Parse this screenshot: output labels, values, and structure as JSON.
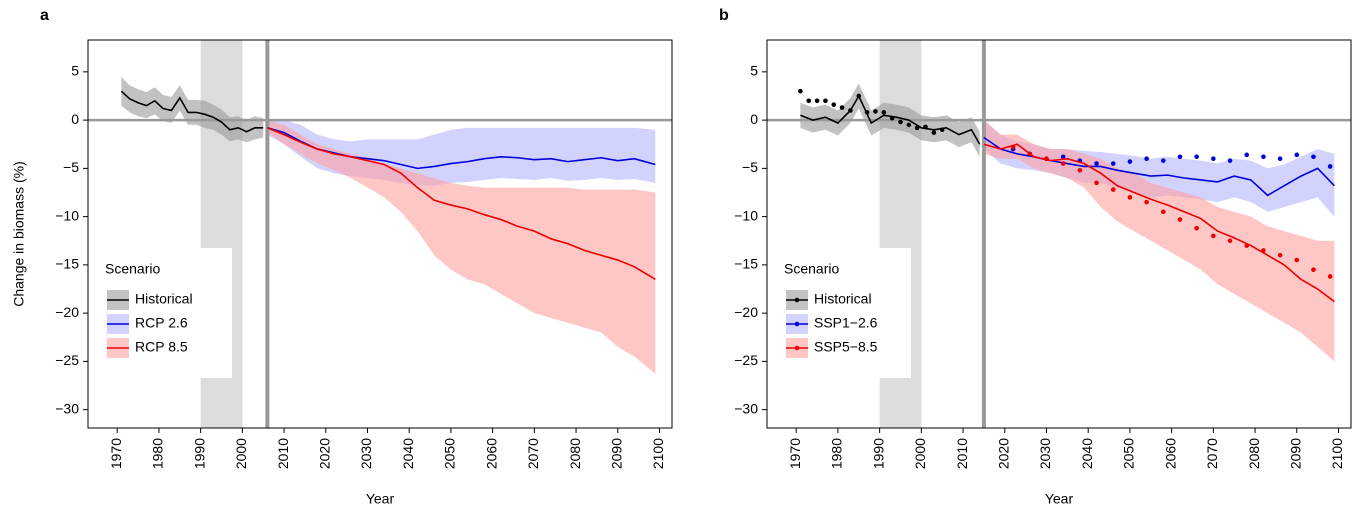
{
  "chart_data": [
    {
      "type": "line",
      "panel": "a",
      "xlabel": "Year",
      "ylabel": "Change in biomass (%)",
      "xlim": [
        1963,
        2103
      ],
      "ylim": [
        -31.9,
        8.3
      ],
      "xticks": [
        1970,
        1980,
        1990,
        2000,
        2010,
        2020,
        2030,
        2040,
        2050,
        2060,
        2070,
        2080,
        2090,
        2100
      ],
      "yticks": [
        5,
        0,
        {
          "value": -5,
          "label": "−5"
        },
        {
          "value": -10,
          "label": "−10"
        },
        {
          "value": -15,
          "label": "−15"
        },
        {
          "value": -20,
          "label": "−20"
        },
        {
          "value": -25,
          "label": "−25"
        },
        {
          "value": -30,
          "label": "−30"
        }
      ],
      "shaded_span": [
        1990,
        2000
      ],
      "span_color": "#dcdcdc",
      "vline": 2006,
      "hline": 0,
      "ref_color": "#999999",
      "legend_title": "Scenario",
      "legend": "lower left",
      "series": [
        {
          "name": "Historical",
          "color": "#000000",
          "band_color": "#9a9a9a",
          "x": [
            1971,
            1973,
            1975,
            1977,
            1979,
            1981,
            1983,
            1985,
            1987,
            1989,
            1991,
            1993,
            1995,
            1997,
            1999,
            2001,
            2003,
            2005
          ],
          "values": [
            3,
            2.2,
            1.8,
            1.5,
            2,
            1.2,
            1,
            2.3,
            0.8,
            0.8,
            0.6,
            0.3,
            -0.2,
            -1,
            -0.8,
            -1.2,
            -0.8,
            -0.8
          ],
          "lower": [
            1.5,
            0.8,
            0.4,
            0.2,
            0.6,
            -0.1,
            -0.3,
            1,
            -0.5,
            -0.5,
            -0.8,
            -1,
            -1.5,
            -2.2,
            -2,
            -2.3,
            -2,
            -1.8
          ],
          "upper": [
            4.5,
            3.6,
            3.2,
            2.9,
            3.4,
            2.6,
            2.4,
            3.6,
            2.1,
            2.1,
            2,
            1.6,
            1.1,
            0.3,
            0.4,
            0,
            0.4,
            0.2
          ]
        },
        {
          "name": "RCP 2.6",
          "color": "#0000dd",
          "band_color": "#b4b4ff",
          "x": [
            2006,
            2010,
            2014,
            2018,
            2022,
            2026,
            2030,
            2034,
            2038,
            2042,
            2046,
            2050,
            2054,
            2058,
            2062,
            2066,
            2070,
            2074,
            2078,
            2082,
            2086,
            2090,
            2094,
            2099
          ],
          "values": [
            -0.8,
            -1.3,
            -2.2,
            -3,
            -3.4,
            -3.8,
            -4,
            -4.2,
            -4.6,
            -5,
            -4.8,
            -4.5,
            -4.3,
            -4,
            -3.8,
            -3.9,
            -4.1,
            -4,
            -4.3,
            -4.1,
            -3.9,
            -4.2,
            -4,
            -4.6
          ],
          "lower": [
            -1.5,
            -2.5,
            -3.8,
            -5,
            -5.5,
            -5.8,
            -6,
            -6.2,
            -6.5,
            -6.8,
            -6.8,
            -6.5,
            -6.4,
            -6.2,
            -6,
            -6.1,
            -6.2,
            -6,
            -6.3,
            -6.2,
            -6,
            -6.2,
            -6.1,
            -6.5
          ],
          "upper": [
            0,
            0,
            -0.5,
            -1.5,
            -2,
            -2.2,
            -2,
            -2,
            -2,
            -2,
            -1.5,
            -1,
            -0.8,
            -0.8,
            -0.8,
            -0.8,
            -0.8,
            -0.8,
            -0.8,
            -0.8,
            -0.8,
            -0.8,
            -0.8,
            -1
          ]
        },
        {
          "name": "RCP 8.5",
          "color": "#ee0000",
          "band_color": "#ffa0a0",
          "x": [
            2006,
            2010,
            2014,
            2018,
            2022,
            2026,
            2030,
            2034,
            2038,
            2042,
            2046,
            2050,
            2054,
            2058,
            2062,
            2066,
            2070,
            2074,
            2078,
            2082,
            2086,
            2090,
            2094,
            2099
          ],
          "values": [
            -0.8,
            -1.5,
            -2.3,
            -3,
            -3.5,
            -3.8,
            -4.2,
            -4.6,
            -5.5,
            -7,
            -8.3,
            -8.8,
            -9.2,
            -9.8,
            -10.3,
            -11,
            -11.5,
            -12.3,
            -12.8,
            -13.5,
            -14,
            -14.5,
            -15.2,
            -16.5
          ],
          "lower": [
            -1.2,
            -2.5,
            -3.5,
            -4.5,
            -5.2,
            -6,
            -7,
            -8,
            -9.5,
            -11.5,
            -14,
            -15.5,
            -16.5,
            -17,
            -18,
            -19,
            -20,
            -20.5,
            -21,
            -21.5,
            -22,
            -23.5,
            -24.5,
            -26.3
          ],
          "upper": [
            0,
            -0.5,
            -1.5,
            -2.5,
            -3,
            -3.5,
            -4,
            -4.5,
            -5,
            -5.5,
            -6,
            -6.5,
            -6.8,
            -7,
            -7,
            -7,
            -7,
            -7,
            -7,
            -7.2,
            -7.2,
            -7.2,
            -7.2,
            -7.5
          ]
        }
      ]
    },
    {
      "type": "line",
      "panel": "b",
      "xlabel": "Year",
      "xlim": [
        1963,
        2103
      ],
      "ylim": [
        -31.9,
        8.3
      ],
      "xticks": [
        1970,
        1980,
        1990,
        2000,
        2010,
        2020,
        2030,
        2040,
        2050,
        2060,
        2070,
        2080,
        2090,
        2100
      ],
      "yticks": [
        5,
        0,
        {
          "value": -5,
          "label": "−5"
        },
        {
          "value": -10,
          "label": "−10"
        },
        {
          "value": -15,
          "label": "−15"
        },
        {
          "value": -20,
          "label": "−20"
        },
        {
          "value": -25,
          "label": "−25"
        },
        {
          "value": -30,
          "label": "−30"
        }
      ],
      "shaded_span": [
        1990,
        2000
      ],
      "span_color": "#dcdcdc",
      "vline": 2015,
      "hline": 0,
      "ref_color": "#999999",
      "legend_title": "Scenario",
      "legend": "lower left",
      "series": [
        {
          "name": "Historical",
          "color": "#000000",
          "band_color": "#9a9a9a",
          "x": [
            1971,
            1974,
            1977,
            1980,
            1983,
            1985,
            1988,
            1991,
            1994,
            1997,
            2000,
            2003,
            2006,
            2009,
            2012,
            2014
          ],
          "values": [
            0.5,
            0,
            0.3,
            -0.3,
            1,
            2.5,
            -0.3,
            0.5,
            0.3,
            0,
            -0.8,
            -1,
            -0.8,
            -1.5,
            -1,
            -2.5
          ],
          "lower": [
            -0.8,
            -1.3,
            -1,
            -1.6,
            -0.3,
            1.2,
            -1.6,
            -0.8,
            -1,
            -1.3,
            -2.1,
            -2.3,
            -2.1,
            -2.8,
            -2.3,
            -3.8
          ],
          "upper": [
            1.8,
            1.3,
            1.6,
            1,
            2.3,
            3.8,
            1,
            1.8,
            1.6,
            1.3,
            0.5,
            0.3,
            0.5,
            -0.2,
            0.3,
            -1.2
          ],
          "points_x": [
            1971,
            1973,
            1975,
            1977,
            1979,
            1981,
            1983,
            1985,
            1987,
            1989,
            1991,
            1993,
            1995,
            1997,
            1999,
            2001,
            2003,
            2005
          ],
          "points": [
            3,
            2,
            2,
            2,
            1.6,
            1.3,
            1,
            2.5,
            0.8,
            0.9,
            0.8,
            0.2,
            -0.2,
            -0.5,
            -0.8,
            -0.7,
            -1.3,
            -1
          ]
        },
        {
          "name": "SSP1−2.6",
          "color": "#0000dd",
          "band_color": "#b4b4ff",
          "x": [
            2015,
            2019,
            2023,
            2027,
            2031,
            2035,
            2039,
            2043,
            2047,
            2051,
            2055,
            2059,
            2063,
            2067,
            2071,
            2075,
            2079,
            2083,
            2087,
            2091,
            2095,
            2099
          ],
          "values": [
            -1.8,
            -3,
            -3.5,
            -3.8,
            -4.2,
            -4.5,
            -4.8,
            -4.8,
            -5.2,
            -5.5,
            -5.8,
            -5.7,
            -6,
            -6.2,
            -6.4,
            -5.8,
            -6.2,
            -7.8,
            -6.8,
            -5.8,
            -5,
            -6.8
          ],
          "lower": [
            -3,
            -4.5,
            -5,
            -5.2,
            -5.5,
            -6,
            -6.5,
            -6.5,
            -7,
            -7.5,
            -8,
            -7.8,
            -8,
            -8.2,
            -8.5,
            -8,
            -8.5,
            -9.5,
            -9,
            -8.5,
            -8,
            -10
          ],
          "upper": [
            0,
            -1.5,
            -2.2,
            -2.5,
            -3,
            -3,
            -3.2,
            -3.3,
            -3.5,
            -3.7,
            -4,
            -3.8,
            -4,
            -4.2,
            -4.5,
            -4,
            -4.2,
            -5,
            -4.6,
            -3.8,
            -3,
            -3.5
          ],
          "points_x": [
            2022,
            2026,
            2030,
            2034,
            2038,
            2042,
            2046,
            2050,
            2054,
            2058,
            2062,
            2066,
            2070,
            2074,
            2078,
            2082,
            2086,
            2090,
            2094,
            2098
          ],
          "points": [
            -3,
            -3.5,
            -4,
            -3.8,
            -4.2,
            -4.5,
            -4.5,
            -4.3,
            -4,
            -4.2,
            -3.8,
            -3.8,
            -4,
            -4.2,
            -3.6,
            -3.8,
            -4,
            -3.6,
            -3.8,
            -4.8
          ]
        },
        {
          "name": "SSP5−8.5",
          "color": "#ee0000",
          "band_color": "#ffa0a0",
          "x": [
            2015,
            2019,
            2023,
            2027,
            2031,
            2035,
            2039,
            2043,
            2047,
            2051,
            2055,
            2059,
            2063,
            2067,
            2071,
            2075,
            2079,
            2083,
            2087,
            2091,
            2095,
            2099
          ],
          "values": [
            -2.5,
            -3,
            -2.5,
            -3.8,
            -4.2,
            -4,
            -4.5,
            -5.5,
            -6.8,
            -7.5,
            -8.2,
            -8.8,
            -9.5,
            -10.2,
            -11.5,
            -12.2,
            -13,
            -14,
            -15,
            -16.5,
            -17.5,
            -18.8
          ],
          "lower": [
            -3.5,
            -4,
            -4,
            -5,
            -5.5,
            -6,
            -7,
            -9,
            -10.5,
            -11.5,
            -12.5,
            -13.5,
            -14.5,
            -15.5,
            -17,
            -18,
            -19,
            -20,
            -21,
            -22,
            -23.5,
            -25
          ],
          "upper": [
            0,
            -1.5,
            -1.5,
            -2.5,
            -3,
            -3,
            -3.5,
            -4,
            -5,
            -5.5,
            -6.5,
            -7,
            -7.5,
            -8,
            -9,
            -9.5,
            -10,
            -11,
            -11.5,
            -12,
            -12.5,
            -12.5
          ],
          "points_x": [
            2022,
            2026,
            2030,
            2034,
            2038,
            2042,
            2046,
            2050,
            2054,
            2058,
            2062,
            2066,
            2070,
            2074,
            2078,
            2082,
            2086,
            2090,
            2094,
            2098
          ],
          "points": [
            -2.8,
            -3.5,
            -4,
            -4.5,
            -5.2,
            -6.5,
            -7.2,
            -8,
            -8.5,
            -9.5,
            -10.3,
            -11.2,
            -12,
            -12.5,
            -13,
            -13.5,
            -14,
            -14.5,
            -15.5,
            -16.2
          ]
        }
      ]
    }
  ]
}
